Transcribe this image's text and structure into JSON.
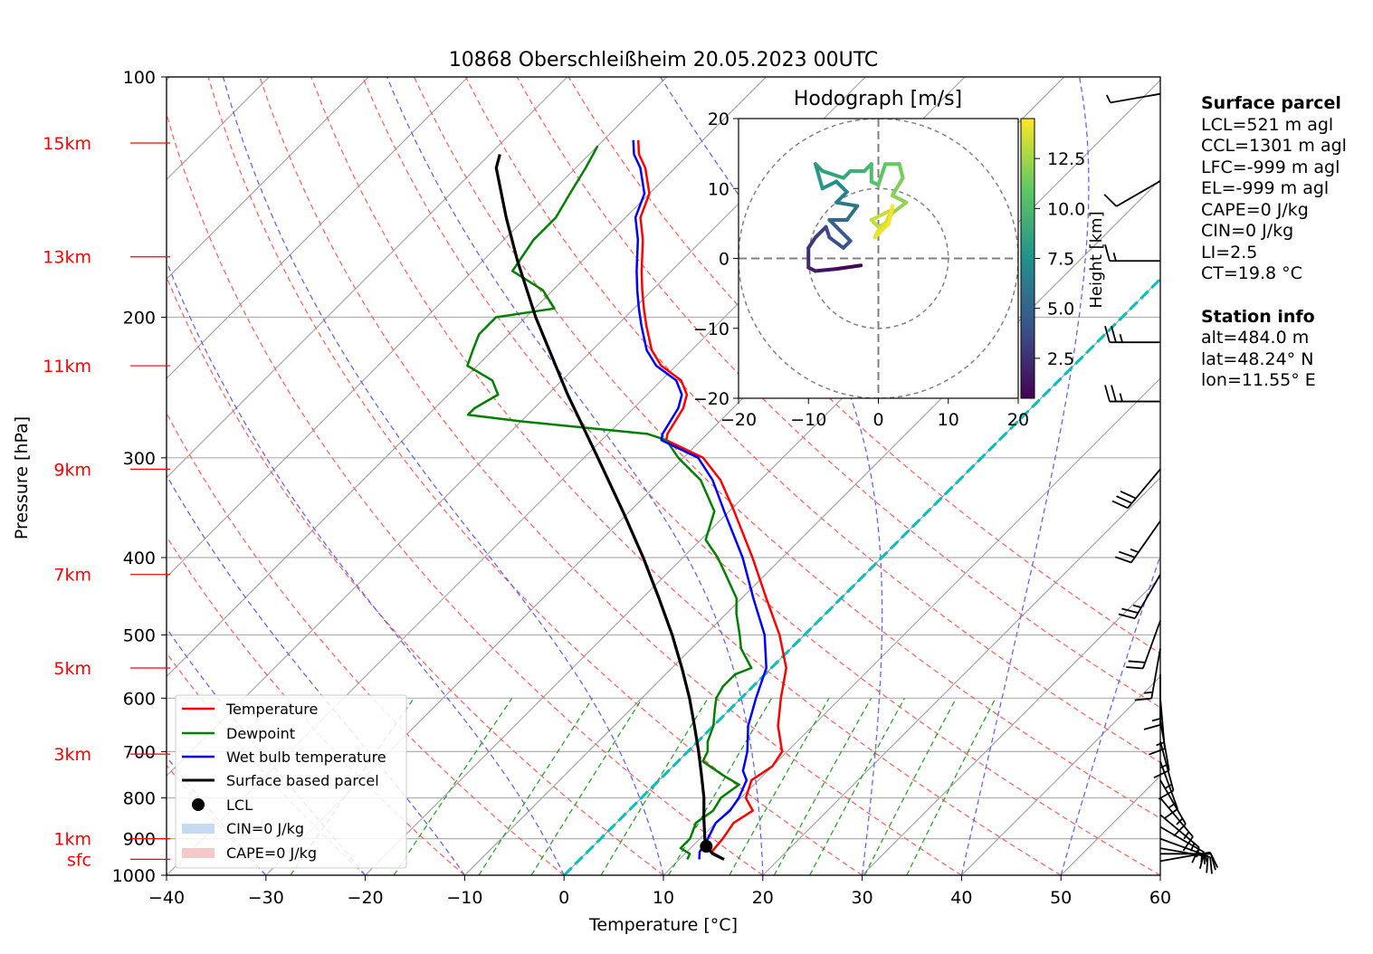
{
  "title": "10868 Oberschleißheim 20.05.2023 00UTC",
  "colors": {
    "temperature": "#ff0000",
    "dewpoint": "#008000",
    "wetbulb": "#0000ff",
    "parcel": "#000000",
    "dry_adiabat": "#ff6666",
    "moist_adiabat": "#6666ee",
    "mixing_ratio": "#2ca02c",
    "isotherm": "#a0a0a0",
    "zero_isotherm": "#00bfbf",
    "height_label": "#ff0000",
    "cin_fill": "#c6dbef",
    "cape_fill": "#f7c8c8"
  },
  "chart_data": {
    "type": "line",
    "title": "10868 Oberschleißheim 20.05.2023 00UTC",
    "xlabel": "Temperature [°C]",
    "ylabel": "Pressure [hPa]",
    "xlim": [
      -40,
      60
    ],
    "ylim": [
      1000,
      100
    ],
    "y_scale": "log",
    "skew": true,
    "grid": true,
    "x_ticks": [
      "−40",
      "−30",
      "−20",
      "−10",
      "0",
      "10",
      "20",
      "30",
      "40",
      "50",
      "60"
    ],
    "y_ticks": [
      "100",
      "200",
      "300",
      "400",
      "500",
      "600",
      "700",
      "800",
      "900",
      "1000"
    ],
    "height_labels": [
      {
        "label": "sfc",
        "p": 955
      },
      {
        "label": "1km",
        "p": 900
      },
      {
        "label": "3km",
        "p": 705
      },
      {
        "label": "5km",
        "p": 550
      },
      {
        "label": "7km",
        "p": 420
      },
      {
        "label": "9km",
        "p": 310
      },
      {
        "label": "11km",
        "p": 230
      },
      {
        "label": "13km",
        "p": 168
      },
      {
        "label": "15km",
        "p": 121
      }
    ],
    "legend": {
      "placement": "lower-left",
      "entries": [
        "Temperature",
        "Dewpoint",
        "Wet bulb temperature",
        "Surface based parcel",
        "LCL",
        "CIN=0 J/kg",
        "CAPE=0 J/kg"
      ]
    },
    "series": [
      {
        "name": "Temperature",
        "points": [
          [
            955,
            14.5
          ],
          [
            935,
            12.5
          ],
          [
            900,
            12.3
          ],
          [
            860,
            11.8
          ],
          [
            830,
            12.5
          ],
          [
            800,
            10.5
          ],
          [
            760,
            9.3
          ],
          [
            730,
            10.0
          ],
          [
            700,
            9.5
          ],
          [
            650,
            6.5
          ],
          [
            600,
            4.0
          ],
          [
            550,
            1.5
          ],
          [
            500,
            -2.5
          ],
          [
            450,
            -7.5
          ],
          [
            400,
            -13
          ],
          [
            350,
            -19.5
          ],
          [
            320,
            -24
          ],
          [
            300,
            -28
          ],
          [
            285,
            -33.5
          ],
          [
            280,
            -34
          ],
          [
            260,
            -35
          ],
          [
            250,
            -36
          ],
          [
            240,
            -38
          ],
          [
            230,
            -41.5
          ],
          [
            220,
            -44
          ],
          [
            205,
            -47
          ],
          [
            195,
            -49
          ],
          [
            185,
            -51
          ],
          [
            175,
            -53
          ],
          [
            160,
            -56
          ],
          [
            150,
            -58.5
          ],
          [
            140,
            -60
          ],
          [
            130,
            -63
          ],
          [
            125,
            -65
          ],
          [
            120,
            -66.5
          ]
        ]
      },
      {
        "name": "Dewpoint",
        "points": [
          [
            955,
            10.8
          ],
          [
            940,
            10.5
          ],
          [
            925,
            9.0
          ],
          [
            900,
            9.0
          ],
          [
            860,
            8.0
          ],
          [
            830,
            8.5
          ],
          [
            800,
            8.0
          ],
          [
            770,
            8.5
          ],
          [
            750,
            6.0
          ],
          [
            720,
            2.5
          ],
          [
            700,
            2.0
          ],
          [
            680,
            1.0
          ],
          [
            650,
            0.0
          ],
          [
            630,
            -1.0
          ],
          [
            620,
            -1.5
          ],
          [
            600,
            -2.5
          ],
          [
            580,
            -3.0
          ],
          [
            560,
            -3.0
          ],
          [
            550,
            -2.0
          ],
          [
            520,
            -5.0
          ],
          [
            500,
            -6.5
          ],
          [
            470,
            -9.0
          ],
          [
            450,
            -10.5
          ],
          [
            420,
            -14.0
          ],
          [
            400,
            -16.5
          ],
          [
            380,
            -19.5
          ],
          [
            350,
            -21.5
          ],
          [
            320,
            -26.0
          ],
          [
            300,
            -30.5
          ],
          [
            285,
            -33.5
          ],
          [
            280,
            -36
          ],
          [
            270,
            -50
          ],
          [
            265,
            -56
          ],
          [
            260,
            -56
          ],
          [
            250,
            -55
          ],
          [
            240,
            -57
          ],
          [
            230,
            -61
          ],
          [
            220,
            -62
          ],
          [
            210,
            -63
          ],
          [
            200,
            -63
          ],
          [
            195,
            -58
          ],
          [
            185,
            -61
          ],
          [
            175,
            -66
          ],
          [
            160,
            -67
          ],
          [
            150,
            -67
          ],
          [
            140,
            -68
          ],
          [
            130,
            -69
          ],
          [
            122,
            -70
          ]
        ]
      },
      {
        "name": "Wet bulb temperature",
        "points": [
          [
            955,
            12.0
          ],
          [
            935,
            11.3
          ],
          [
            900,
            10.8
          ],
          [
            860,
            10.0
          ],
          [
            830,
            10.2
          ],
          [
            800,
            9.8
          ],
          [
            760,
            8.8
          ],
          [
            740,
            7.5
          ],
          [
            700,
            6.0
          ],
          [
            650,
            3.5
          ],
          [
            600,
            1.5
          ],
          [
            550,
            -0.5
          ],
          [
            500,
            -4.0
          ],
          [
            450,
            -8.8
          ],
          [
            400,
            -14.0
          ],
          [
            350,
            -20.5
          ],
          [
            320,
            -24.8
          ],
          [
            300,
            -28.5
          ],
          [
            285,
            -34
          ],
          [
            280,
            -34.5
          ],
          [
            260,
            -35.5
          ],
          [
            250,
            -36.5
          ],
          [
            240,
            -38.5
          ],
          [
            230,
            -42
          ],
          [
            220,
            -44.5
          ],
          [
            205,
            -47.5
          ],
          [
            195,
            -49.5
          ],
          [
            185,
            -51.5
          ],
          [
            175,
            -53.5
          ],
          [
            160,
            -56.5
          ],
          [
            150,
            -59
          ],
          [
            140,
            -60.5
          ],
          [
            130,
            -63.5
          ],
          [
            125,
            -65.5
          ],
          [
            120,
            -67
          ]
        ]
      },
      {
        "name": "Surface based parcel",
        "points": [
          [
            955,
            14.5
          ],
          [
            940,
            12.8
          ],
          [
            920,
            11.4
          ],
          [
            900,
            10.5
          ],
          [
            850,
            8.4
          ],
          [
            800,
            6.3
          ],
          [
            750,
            3.8
          ],
          [
            700,
            1.1
          ],
          [
            650,
            -1.9
          ],
          [
            600,
            -5.2
          ],
          [
            550,
            -9.0
          ],
          [
            500,
            -13.3
          ],
          [
            450,
            -18.3
          ],
          [
            400,
            -24.0
          ],
          [
            350,
            -30.7
          ],
          [
            300,
            -38.6
          ],
          [
            250,
            -48.0
          ],
          [
            200,
            -59.0
          ],
          [
            170,
            -66.5
          ],
          [
            150,
            -72.0
          ],
          [
            130,
            -78.0
          ],
          [
            125,
            -79.0
          ]
        ]
      }
    ],
    "lcl": {
      "label": "LCL",
      "p": 920,
      "t": 11.4
    },
    "cin": "CIN=0 J/kg",
    "cape": "CAPE=0 J/kg",
    "dry_adiabats_theta_C": [
      -30,
      -20,
      -10,
      0,
      10,
      20,
      30,
      40,
      50,
      60,
      70,
      80,
      90,
      100
    ],
    "moist_adiabats_C": [
      -30,
      -20,
      -10,
      0,
      10,
      20,
      30,
      40,
      50,
      60
    ],
    "mixing_ratios_gkg": [
      0.4,
      1,
      2,
      3,
      5,
      8,
      12,
      16,
      20,
      28,
      36
    ],
    "isotherms_C": [
      -140,
      -130,
      -120,
      -110,
      -100,
      -90,
      -80,
      -70,
      -60,
      -50,
      -40,
      -30,
      -20,
      -10,
      0,
      10,
      20,
      30,
      40,
      50,
      60
    ],
    "wind_barbs": [
      {
        "p": 960,
        "speed_kt": 10,
        "dir": 80
      },
      {
        "p": 940,
        "speed_kt": 15,
        "dir": 90
      },
      {
        "p": 925,
        "speed_kt": 15,
        "dir": 100
      },
      {
        "p": 900,
        "speed_kt": 15,
        "dir": 110
      },
      {
        "p": 870,
        "speed_kt": 15,
        "dir": 120
      },
      {
        "p": 840,
        "speed_kt": 15,
        "dir": 130
      },
      {
        "p": 800,
        "speed_kt": 15,
        "dir": 140
      },
      {
        "p": 760,
        "speed_kt": 15,
        "dir": 150
      },
      {
        "p": 720,
        "speed_kt": 15,
        "dir": 160
      },
      {
        "p": 680,
        "speed_kt": 15,
        "dir": 165
      },
      {
        "p": 640,
        "speed_kt": 15,
        "dir": 170
      },
      {
        "p": 600,
        "speed_kt": 15,
        "dir": 175
      },
      {
        "p": 560,
        "speed_kt": 15,
        "dir": 180
      },
      {
        "p": 520,
        "speed_kt": 15,
        "dir": 190
      },
      {
        "p": 480,
        "speed_kt": 20,
        "dir": 200
      },
      {
        "p": 420,
        "speed_kt": 25,
        "dir": 210
      },
      {
        "p": 360,
        "speed_kt": 25,
        "dir": 215
      },
      {
        "p": 310,
        "speed_kt": 30,
        "dir": 220
      },
      {
        "p": 255,
        "speed_kt": 25,
        "dir": 270
      },
      {
        "p": 215,
        "speed_kt": 25,
        "dir": 270
      },
      {
        "p": 170,
        "speed_kt": 15,
        "dir": 270
      },
      {
        "p": 135,
        "speed_kt": 10,
        "dir": 240
      },
      {
        "p": 105,
        "speed_kt": 5,
        "dir": 260
      }
    ]
  },
  "hodograph": {
    "title": "Hodograph [m/s]",
    "xlim": [
      -20,
      20
    ],
    "ylim": [
      -20,
      20
    ],
    "x_ticks": [
      "−20",
      "−10",
      "0",
      "10",
      "20"
    ],
    "y_ticks": [
      "20",
      "10",
      "0",
      "−10",
      "−20"
    ],
    "rings": [
      10,
      20
    ],
    "colorbar_label": "Height [km]",
    "colorbar_ticks": [
      "2.5",
      "5.0",
      "7.5",
      "10.0",
      "12.5"
    ],
    "colorbar_ticks_values": [
      2.5,
      5.0,
      7.5,
      10.0,
      12.5
    ],
    "height_range_km": [
      0.5,
      14.5
    ],
    "trace": [
      {
        "u": -2.5,
        "v": -1.0,
        "h": 0.5
      },
      {
        "u": -6,
        "v": -1.5,
        "h": 1.0
      },
      {
        "u": -9,
        "v": -1.8,
        "h": 1.5
      },
      {
        "u": -10,
        "v": -1.3,
        "h": 2.0
      },
      {
        "u": -10,
        "v": 1.5,
        "h": 2.5
      },
      {
        "u": -9,
        "v": 3.0,
        "h": 3.0
      },
      {
        "u": -7.5,
        "v": 4.5,
        "h": 3.4
      },
      {
        "u": -7,
        "v": 3.0,
        "h": 3.8
      },
      {
        "u": -5,
        "v": 1.5,
        "h": 4.0
      },
      {
        "u": -4,
        "v": 2.5,
        "h": 4.3
      },
      {
        "u": -6,
        "v": 4.5,
        "h": 4.6
      },
      {
        "u": -7,
        "v": 5.5,
        "h": 5.0
      },
      {
        "u": -4.5,
        "v": 5.5,
        "h": 5.4
      },
      {
        "u": -3,
        "v": 7.5,
        "h": 5.8
      },
      {
        "u": -6,
        "v": 8.0,
        "h": 6.2
      },
      {
        "u": -4.5,
        "v": 9.5,
        "h": 6.7
      },
      {
        "u": -6,
        "v": 11.0,
        "h": 7.2
      },
      {
        "u": -8,
        "v": 10.0,
        "h": 7.6
      },
      {
        "u": -9,
        "v": 13.5,
        "h": 8.0
      },
      {
        "u": -8,
        "v": 12.5,
        "h": 8.3
      },
      {
        "u": -5,
        "v": 11.5,
        "h": 8.7
      },
      {
        "u": -4,
        "v": 12.5,
        "h": 9.1
      },
      {
        "u": -2,
        "v": 12.5,
        "h": 9.5
      },
      {
        "u": -1,
        "v": 13.5,
        "h": 9.9
      },
      {
        "u": -1,
        "v": 11.0,
        "h": 10.3
      },
      {
        "u": 0,
        "v": 10.5,
        "h": 10.6
      },
      {
        "u": 1,
        "v": 13.5,
        "h": 10.9
      },
      {
        "u": 3,
        "v": 13.5,
        "h": 11.2
      },
      {
        "u": 3.5,
        "v": 11.5,
        "h": 11.5
      },
      {
        "u": 2,
        "v": 9.0,
        "h": 11.8
      },
      {
        "u": 4,
        "v": 8.0,
        "h": 12.1
      },
      {
        "u": 2,
        "v": 6.5,
        "h": 12.4
      },
      {
        "u": 1,
        "v": 5.0,
        "h": 12.7
      },
      {
        "u": 0,
        "v": 4.5,
        "h": 13.0
      },
      {
        "u": -1,
        "v": 5.5,
        "h": 13.2
      },
      {
        "u": 2,
        "v": 7.0,
        "h": 13.4
      },
      {
        "u": 1,
        "v": 5.0,
        "h": 13.6
      },
      {
        "u": 0,
        "v": 4.0,
        "h": 13.8
      },
      {
        "u": -0.5,
        "v": 3.0,
        "h": 14.0
      },
      {
        "u": 1.5,
        "v": 5.0,
        "h": 14.2
      },
      {
        "u": 2,
        "v": 7.5,
        "h": 14.4
      }
    ]
  },
  "surface_parcel": {
    "header": "Surface parcel",
    "lines": [
      "LCL=521 m agl",
      "CCL=1301 m agl",
      "LFC=-999 m agl",
      "EL=-999 m agl",
      "CAPE=0 J/kg",
      "CIN=0 J/kg",
      "LI=2.5",
      "CT=19.8 °C"
    ]
  },
  "station_info": {
    "header": "Station info",
    "lines": [
      "alt=484.0 m",
      "lat=48.24° N",
      "lon=11.55° E"
    ]
  }
}
